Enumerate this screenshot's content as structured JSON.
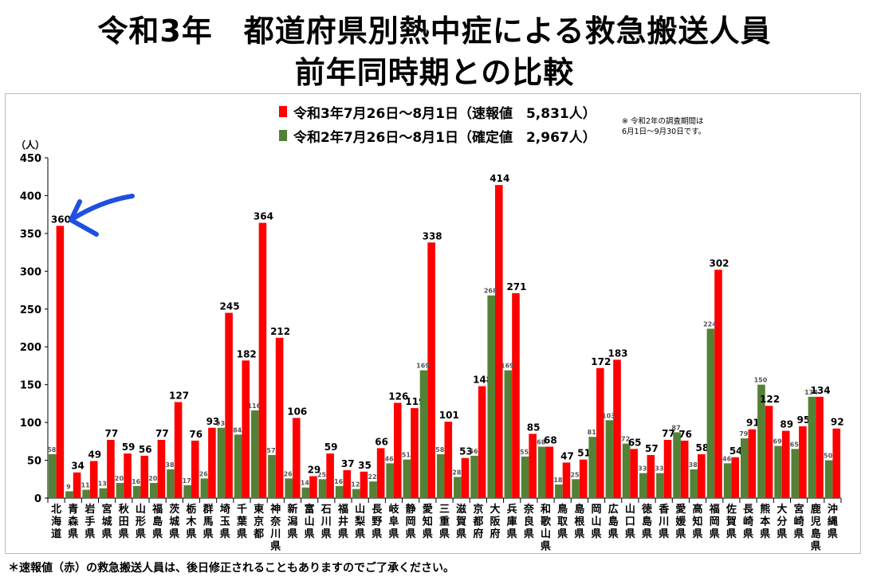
{
  "title_line1": "令和3年　都道府県別熱中症による救急搬送人員",
  "title_line2": "前年同時期との比較",
  "note_lines": [
    "※ 令和2年の調査期間は",
    "6月1日～9月30日です。"
  ],
  "footnote": "＊速報値（赤）の救急搬送人員は、後日修正されることもありますのでご了承ください。",
  "colors": {
    "series_2021": "#ff0000",
    "series_2020": "#538135",
    "annotation_arrow": "#1f4fe0"
  },
  "chart_data": {
    "type": "bar",
    "ylabel": "（人）",
    "ylim": [
      0,
      450
    ],
    "yticks": [
      0,
      50,
      100,
      150,
      200,
      250,
      300,
      350,
      400,
      450
    ],
    "grid": false,
    "legend_position": "top-center",
    "categories": [
      "北海道",
      "青森県",
      "岩手県",
      "宮城県",
      "秋田県",
      "山形県",
      "福島県",
      "茨城県",
      "栃木県",
      "群馬県",
      "埼玉県",
      "千葉県",
      "東京都",
      "神奈川県",
      "新潟県",
      "富山県",
      "石川県",
      "福井県",
      "山梨県",
      "長野県",
      "岐阜県",
      "静岡県",
      "愛知県",
      "三重県",
      "滋賀県",
      "京都府",
      "大阪府",
      "兵庫県",
      "奈良県",
      "和歌山県",
      "鳥取県",
      "島根県",
      "岡山県",
      "広島県",
      "山口県",
      "徳島県",
      "香川県",
      "愛媛県",
      "高知県",
      "福岡県",
      "佐賀県",
      "長崎県",
      "熊本県",
      "大分県",
      "宮崎県",
      "鹿児島県",
      "沖縄県"
    ],
    "series": [
      {
        "name": "令和3年7月26日～8月1日（速報値　5,831人）",
        "values": [
          360,
          34,
          49,
          77,
          59,
          56,
          77,
          127,
          76,
          93,
          245,
          182,
          364,
          212,
          106,
          29,
          59,
          37,
          35,
          66,
          126,
          119,
          338,
          101,
          53,
          148,
          414,
          271,
          85,
          68,
          47,
          51,
          172,
          183,
          65,
          57,
          77,
          76,
          58,
          302,
          54,
          91,
          122,
          89,
          95,
          134,
          92
        ]
      },
      {
        "name": "令和2年7月26日～8月1日（確定値　2,967人）",
        "values": [
          58,
          9,
          11,
          13,
          20,
          16,
          20,
          38,
          17,
          26,
          93,
          84,
          116,
          57,
          26,
          14,
          25,
          16,
          12,
          22,
          46,
          51,
          169,
          58,
          28,
          56,
          268,
          169,
          55,
          68,
          18,
          25,
          81,
          103,
          72,
          33,
          33,
          87,
          38,
          224,
          46,
          79,
          150,
          69,
          65,
          134,
          50
        ]
      }
    ],
    "annotations": [
      "arrow pointing to 北海道 value 360"
    ]
  }
}
